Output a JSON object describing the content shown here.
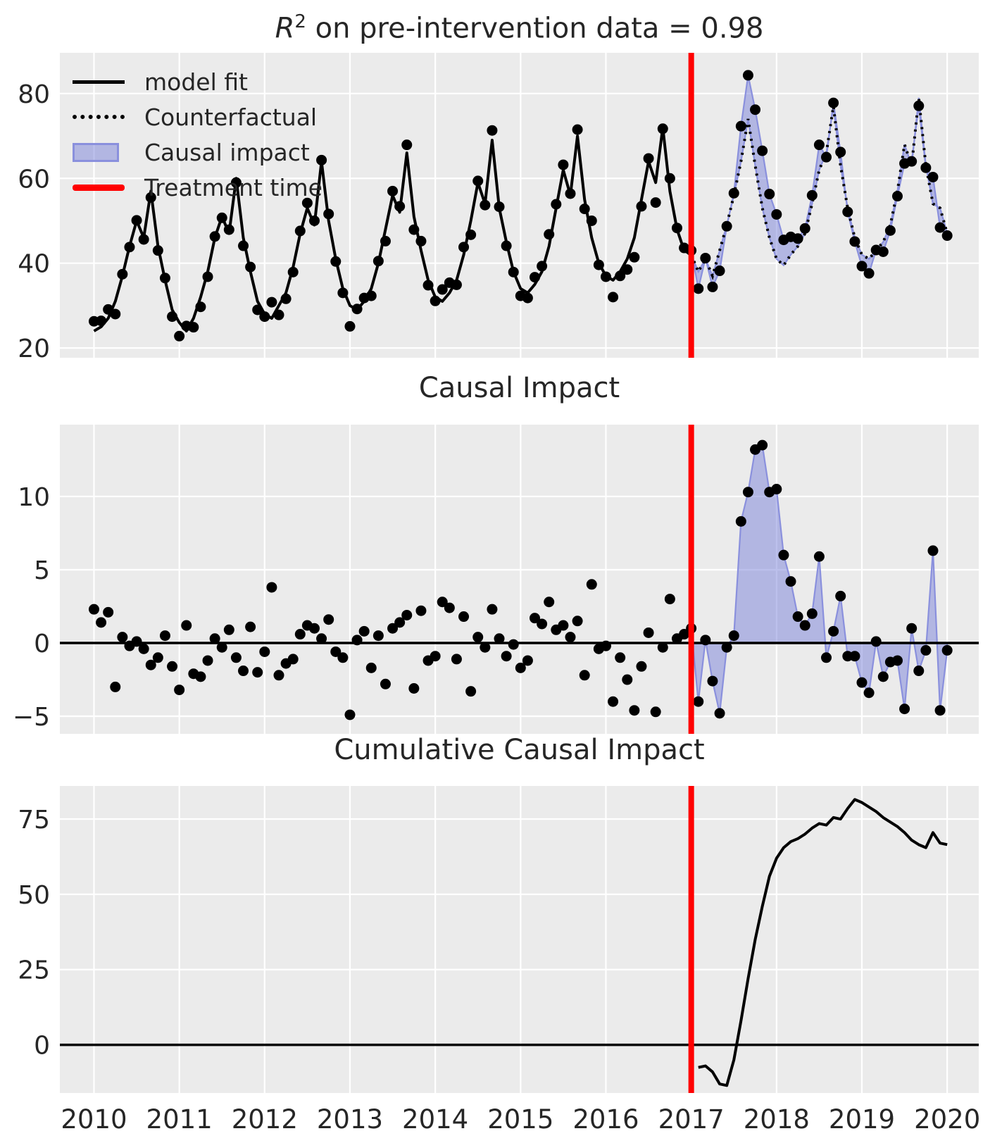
{
  "titles": {
    "panel1_r": "R",
    "panel1_exp": "2",
    "panel1_rest": " on pre-intervention data = 0.98",
    "panel2": "Causal Impact",
    "panel3": "Cumulative Causal Impact"
  },
  "legend": {
    "items": [
      {
        "label": "model fit",
        "swatch": "solid-black-line"
      },
      {
        "label": "Counterfactual",
        "swatch": "dotted-black-line"
      },
      {
        "label": "Causal impact",
        "swatch": "purple-fill"
      },
      {
        "label": "Treatment time",
        "swatch": "red-line"
      }
    ]
  },
  "colors": {
    "panel_background": "#ebebeb",
    "grid": "#ffffff",
    "series": "#000000",
    "treatment_line": "#ff0000",
    "impact_fill": "rgba(122,130,217,0.5)",
    "impact_edge": "#8a90dd",
    "text": "#262626"
  },
  "chart_data": {
    "type": "line",
    "title": "R^2 on pre-intervention data = 0.98",
    "subtitles": [
      "Causal Impact",
      "Cumulative Causal Impact"
    ],
    "x_unit": "year, monthly samples",
    "x_start": 2010.0,
    "x_step": 0.0833333,
    "treatment_time": 2017.0,
    "xticks": [
      2010,
      2011,
      2012,
      2013,
      2014,
      2015,
      2016,
      2017,
      2018,
      2019,
      2020
    ],
    "xlim": [
      2009.6,
      2020.37
    ],
    "panels": [
      {
        "name": "model fit vs observed",
        "yticks": [
          20,
          40,
          60,
          80
        ],
        "ylim": [
          17.7,
          89.6
        ]
      },
      {
        "name": "Causal Impact",
        "yticks": [
          -5,
          0,
          5,
          10
        ],
        "ylim": [
          -6.2,
          14.9
        ]
      },
      {
        "name": "Cumulative Causal Impact",
        "yticks": [
          0,
          25,
          50,
          75
        ],
        "ylim": [
          -16,
          86
        ]
      }
    ],
    "legend_position": "upper left",
    "grid": true,
    "fit_and_counterfactual": [
      24,
      25,
      27,
      31,
      37,
      44,
      50,
      46,
      57,
      44,
      36,
      29,
      26,
      24,
      27,
      32,
      38,
      46,
      51,
      47,
      60,
      46,
      38,
      31,
      28,
      27,
      30,
      33,
      39,
      47,
      53,
      49,
      64,
      50,
      41,
      34,
      30,
      29,
      31,
      34,
      40,
      48,
      56,
      52,
      66,
      51,
      43,
      36,
      32,
      31,
      33,
      36,
      42,
      50,
      59,
      54,
      69,
      53,
      45,
      38,
      34,
      33,
      35,
      38,
      44,
      53,
      62,
      56,
      70,
      55,
      46,
      40,
      37,
      36,
      38,
      41,
      46,
      55,
      64,
      59,
      72,
      57,
      48,
      43,
      42,
      38,
      41,
      37,
      43,
      49,
      56,
      64,
      74,
      63,
      53,
      46,
      41,
      39.5,
      42,
      44,
      47,
      54,
      62,
      66,
      77,
      63,
      53,
      46,
      42,
      41,
      43,
      45,
      49,
      57,
      68,
      63,
      79,
      63,
      54,
      53,
      47
    ],
    "pointwise_effect": [
      2.3,
      1.4,
      2.1,
      -3.0,
      0.4,
      -0.2,
      0.1,
      -0.4,
      -1.5,
      -1.0,
      0.5,
      -1.6,
      -3.2,
      1.2,
      -2.1,
      -2.3,
      -1.2,
      0.3,
      -0.3,
      0.9,
      -1.0,
      -1.9,
      1.1,
      -2.0,
      -0.6,
      3.8,
      -2.2,
      -1.4,
      -1.1,
      0.6,
      1.2,
      1.0,
      0.3,
      1.6,
      -0.6,
      -1.0,
      -4.9,
      0.2,
      0.8,
      -1.7,
      0.5,
      -2.8,
      1.0,
      1.4,
      1.9,
      -3.1,
      2.2,
      -1.2,
      -0.9,
      2.8,
      2.4,
      -1.1,
      1.8,
      -3.3,
      0.4,
      -0.3,
      2.3,
      0.3,
      -0.9,
      -0.1,
      -1.7,
      -1.2,
      1.7,
      1.3,
      2.8,
      0.9,
      1.2,
      0.4,
      1.5,
      -2.2,
      4.0,
      -0.4,
      -0.2,
      -4.0,
      -1.0,
      -2.5,
      -4.6,
      -1.6,
      0.7,
      -4.7,
      -0.3,
      3.0,
      0.3,
      0.6,
      1.0,
      -4.0,
      0.2,
      -2.6,
      -4.8,
      -0.3,
      0.5,
      8.3,
      10.3,
      13.2,
      13.5,
      10.3,
      10.5,
      6.0,
      4.2,
      1.8,
      1.2,
      2.0,
      5.9,
      -1.0,
      0.8,
      3.2,
      -0.9,
      -0.9,
      -2.7,
      -3.4,
      0.1,
      -2.3,
      -1.3,
      -1.2,
      -4.5,
      1.0,
      -1.9,
      -0.5,
      6.3,
      -4.6,
      -0.5
    ],
    "observed_note": "observed scatter = fit_and_counterfactual + pointwise_effect; effect shaded after treatment_time",
    "cumulative": {
      "x_start": 2017.0833333,
      "x_step": 0.0833333,
      "values": [
        -7.5,
        -7.0,
        -9.0,
        -13.0,
        -13.5,
        -5.0,
        8.0,
        22.0,
        35.0,
        46.0,
        56.0,
        62.0,
        65.5,
        67.5,
        68.5,
        70.0,
        72.0,
        73.5,
        73.0,
        75.5,
        75.0,
        78.5,
        81.5,
        80.5,
        79.0,
        77.5,
        75.5,
        74.0,
        72.5,
        70.5,
        68.0,
        66.5,
        65.5,
        70.5,
        67.0,
        66.5
      ]
    }
  }
}
